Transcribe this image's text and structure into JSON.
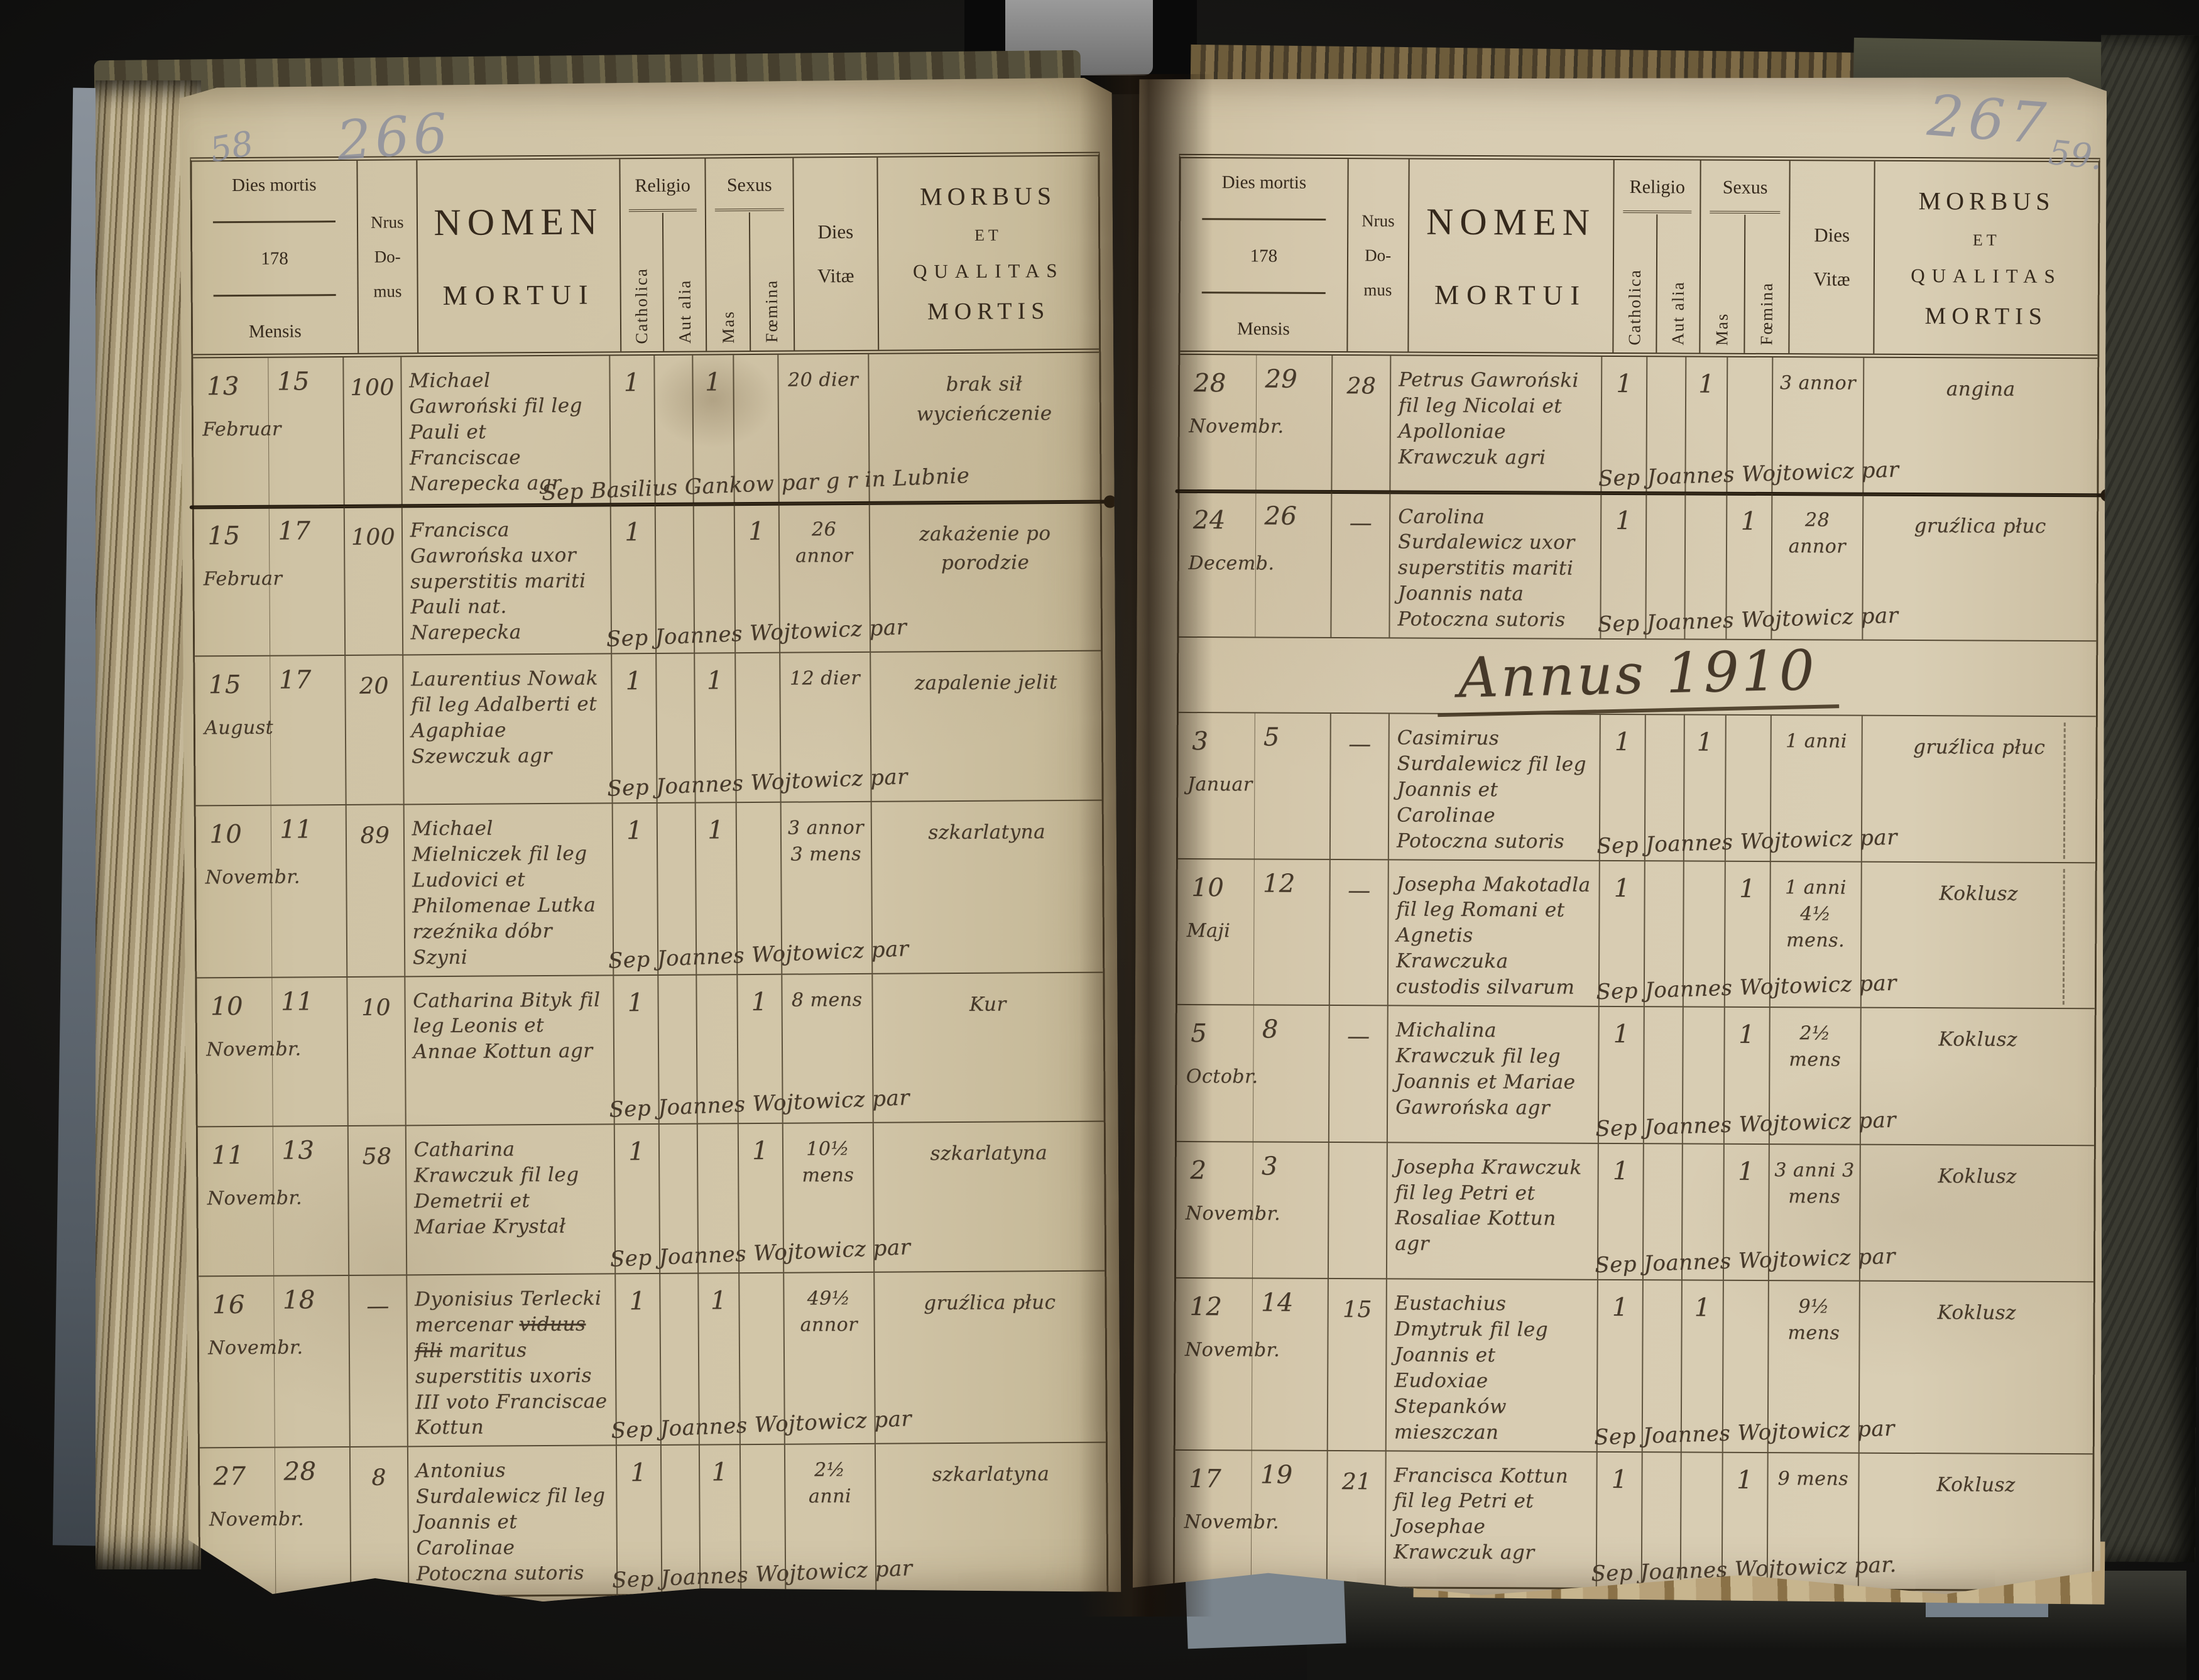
{
  "colors": {
    "background": "#131312",
    "paper_left": "#cfc3a5",
    "paper_right": "#d7cbb1",
    "printed_ink": "#35291c",
    "handwriting_ink": "#46392a",
    "pencil": "#8e909c"
  },
  "header": {
    "dies_mortis": "Dies mortis",
    "year_prefix": "178",
    "mensis": "Mensis",
    "nrus_line1": "Nrus",
    "nrus_line2": "Do-",
    "nrus_line3": "mus",
    "nomen_line1": "NOMEN",
    "nomen_line2": "MORTUI",
    "religio": "Religio",
    "catholica": "Catholica",
    "aut_alia": "Aut alia",
    "sexus": "Sexus",
    "mas": "Mas",
    "foemina": "Fœmina",
    "dies_line1": "Dies",
    "dies_line2": "Vitæ",
    "morbus_line1": "MORBUS",
    "morbus_line2": "ET",
    "morbus_line3": "QUALITAS",
    "morbus_line4": "MORTIS"
  },
  "pages": [
    {
      "side": "left",
      "pencil_numbers": [
        "58",
        "266"
      ],
      "rows": [
        {
          "day1": "13",
          "day2": "15",
          "month": "Februar",
          "domus": "100",
          "name": "Michael Gawroński fil leg Pauli et Franciscae Narepecka agr",
          "catholica": "1",
          "mas": "1",
          "foemina": "",
          "dies_vitae": "20 dier",
          "morbus": "brak sił wycieńczenie",
          "sepultura": "Sep Basilius Gankow par g r in Lubnie",
          "heavy_rule": true
        },
        {
          "day1": "15",
          "day2": "17",
          "month": "Februar",
          "domus": "100",
          "name": "Francisca Gawrońska uxor superstitis mariti Pauli nat. Narepecka",
          "catholica": "1",
          "mas": "",
          "foemina": "1",
          "dies_vitae": "26 annor",
          "morbus": "zakażenie po porodzie",
          "sepultura": "Sep Joannes Wojtowicz par"
        },
        {
          "day1": "15",
          "day2": "17",
          "month": "August",
          "domus": "20",
          "name": "Laurentius Nowak fil leg Adalberti et Agaphiae Szewczuk agr",
          "catholica": "1",
          "mas": "1",
          "foemina": "",
          "dies_vitae": "12 dier",
          "morbus": "zapalenie jelit",
          "sepultura": "Sep Joannes Wojtowicz par"
        },
        {
          "day1": "10",
          "day2": "11",
          "month": "Novembr.",
          "domus": "89",
          "name": "Michael Mielniczek fil leg Ludovici et Philomenae Lutka rzeźnika dóbr Szyni",
          "catholica": "1",
          "mas": "1",
          "foemina": "",
          "dies_vitae": "3 annor 3 mens",
          "morbus": "szkarlatyna",
          "sepultura": "Sep Joannes Wojtowicz par"
        },
        {
          "day1": "10",
          "day2": "11",
          "month": "Novembr.",
          "domus": "10",
          "name": "Catharina Bityk fil leg Leonis et Annae Kottun agr",
          "catholica": "1",
          "mas": "",
          "foemina": "1",
          "dies_vitae": "8 mens",
          "morbus": "Kur",
          "sepultura": "Sep Joannes Wojtowicz par"
        },
        {
          "day1": "11",
          "day2": "13",
          "month": "Novembr.",
          "domus": "58",
          "name": "Catharina Krawczuk fil leg Demetrii et Mariae Krystał",
          "catholica": "1",
          "mas": "",
          "foemina": "1",
          "dies_vitae": "10½ mens",
          "morbus": "szkarlatyna",
          "sepultura": "Sep Joannes Wojtowicz par"
        },
        {
          "day1": "16",
          "day2": "18",
          "month": "Novembr.",
          "domus": "—",
          "name": "Dyonisius Terlecki mercenar",
          "name_struck": "viduus fili",
          "name_cont": "maritus superstitis uxoris III voto Franciscae Kottun",
          "catholica": "1",
          "mas": "1",
          "foemina": "",
          "dies_vitae": "49½ annor",
          "morbus": "gruźlica płuc",
          "sepultura": "Sep Joannes Wojtowicz par"
        },
        {
          "day1": "27",
          "day2": "28",
          "month": "Novembr.",
          "domus": "8",
          "name": "Antonius Surdalewicz fil leg Joannis et Carolinae Potoczna sutoris",
          "catholica": "1",
          "mas": "1",
          "foemina": "",
          "dies_vitae": "2½ anni",
          "morbus": "szkarlatyna",
          "sepultura": "Sep Joannes Wojtowicz par"
        }
      ]
    },
    {
      "side": "right",
      "pencil_numbers": [
        "267",
        "59."
      ],
      "rows": [
        {
          "day1": "28",
          "day2": "29",
          "month": "Novembr.",
          "domus": "28",
          "name": "Petrus Gawroński fil leg Nicolai et Apolloniae Krawczuk agri",
          "catholica": "1",
          "mas": "1",
          "foemina": "",
          "dies_vitae": "3 annor",
          "morbus": "angina",
          "sepultura": "Sep Joannes Wojtowicz par",
          "heavy_rule": true
        },
        {
          "day1": "24",
          "day2": "26",
          "month": "Decemb.",
          "domus": "—",
          "name": "Carolina Surdalewicz uxor superstitis mariti Joannis nata Potoczna sutoris",
          "catholica": "1",
          "mas": "",
          "foemina": "1",
          "dies_vitae": "28 annor",
          "morbus": "gruźlica płuc",
          "sepultura": "Sep Joannes Wojtowicz par"
        },
        {
          "year_heading": "Annus 1910"
        },
        {
          "day1": "3",
          "day2": "5",
          "month": "Januar",
          "domus": "—",
          "name": "Casimirus Surdalewicz fil leg Joannis et Carolinae Potoczna sutoris",
          "catholica": "1",
          "mas": "1",
          "foemina": "",
          "dies_vitae": "1 anni",
          "morbus": "gruźlica płuc",
          "sepultura": "Sep Joannes Wojtowicz par",
          "dash_col": true
        },
        {
          "day1": "10",
          "day2": "12",
          "month": "Maji",
          "domus": "—",
          "name": "Josepha Makotadla fil leg Romani et Agnetis Krawczuka custodis silvarum",
          "catholica": "1",
          "mas": "",
          "foemina": "1",
          "dies_vitae": "1 anni 4½ mens.",
          "morbus": "Koklusz",
          "sepultura": "Sep Joannes Wojtowicz par",
          "dash_col": true
        },
        {
          "day1": "5",
          "day2": "8",
          "month": "Octobr.",
          "domus": "—",
          "name": "Michalina Krawczuk fil leg Joannis et Mariae Gawrońska agr",
          "catholica": "1",
          "mas": "",
          "foemina": "1",
          "dies_vitae": "2½ mens",
          "morbus": "Koklusz",
          "sepultura": "Sep Joannes Wojtowicz par"
        },
        {
          "day1": "2",
          "day2": "3",
          "month": "Novembr.",
          "domus": "",
          "name": "Josepha Krawczuk fil leg Petri et Rosaliae Kottun agr",
          "catholica": "1",
          "mas": "",
          "foemina": "1",
          "dies_vitae": "3 anni 3 mens",
          "morbus": "Koklusz",
          "sepultura": "Sep Joannes Wojtowicz par"
        },
        {
          "day1": "12",
          "day2": "14",
          "month": "Novembr.",
          "domus": "15",
          "name": "Eustachius Dmytruk fil leg Joannis et Eudoxiae Stepanków mieszczan",
          "catholica": "1",
          "mas": "1",
          "foemina": "",
          "dies_vitae": "9½ mens",
          "morbus": "Koklusz",
          "sepultura": "Sep Joannes Wojtowicz par"
        },
        {
          "day1": "17",
          "day2": "19",
          "month": "Novembr.",
          "domus": "21",
          "name": "Francisca Kottun fil leg Petri et Josephae Krawczuk agr",
          "catholica": "1",
          "mas": "",
          "foemina": "1",
          "dies_vitae": "9 mens",
          "morbus": "Koklusz",
          "sepultura": "Sep Joannes Wojtowicz par."
        }
      ]
    }
  ]
}
